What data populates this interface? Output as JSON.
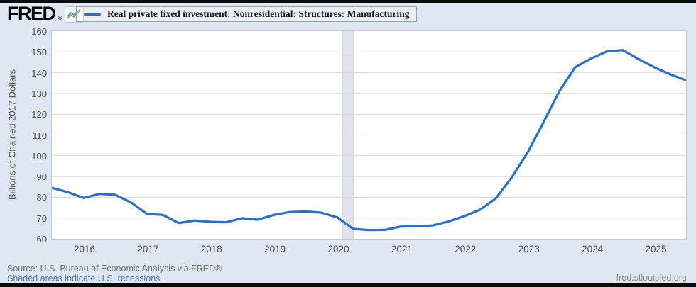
{
  "header": {
    "logo_text": "FRED",
    "registered_mark": "®",
    "legend_label": "Real private fixed investment: Nonresidential: Structures: Manufacturing"
  },
  "y_axis": {
    "title": "Billions of Chained 2017 Dollars",
    "ticks": [
      160,
      150,
      140,
      130,
      120,
      110,
      100,
      90,
      80,
      70,
      60
    ]
  },
  "x_axis": {
    "ticks": [
      "2016",
      "2017",
      "2018",
      "2019",
      "2020",
      "2021",
      "2022",
      "2023",
      "2024",
      "2025"
    ]
  },
  "footer": {
    "source": "Source: U.S. Bureau of Economic Analysis via FRED®",
    "recession_note": "Shaded areas indicate U.S. recessions.",
    "site": "fred.stlouisfed.org"
  },
  "colors": {
    "line": "#2470d4",
    "page_background": "#dfe8f2",
    "plot_background": "#ffffff",
    "gridline": "#d7d7d7",
    "recession_band": "#e0e4ea",
    "recession_band_edge": "#c8ced6",
    "tick_text": "#4d4d4d",
    "link_blue": "#4a77b4"
  },
  "chart_data": {
    "type": "line",
    "title": "Real private fixed investment: Nonresidential: Structures: Manufacturing",
    "ylabel": "Billions of Chained 2017 Dollars",
    "ylim": [
      60,
      160
    ],
    "y_tick_step": 10,
    "grid": "horizontal",
    "legend_position": "top-left",
    "frequency": "quarterly",
    "x_start": "2015-Q2",
    "x_end": "2025-Q2",
    "values": [
      84.5,
      82.5,
      79.7,
      81.6,
      81.2,
      77.5,
      72.0,
      71.5,
      67.6,
      68.8,
      68.2,
      68.0,
      69.9,
      69.2,
      71.5,
      72.9,
      73.2,
      72.6,
      70.3,
      64.8,
      64.2,
      64.3,
      65.9,
      66.1,
      66.4,
      68.3,
      70.9,
      74.0,
      79.5,
      89.5,
      101.5,
      116.0,
      131.0,
      142.6,
      146.8,
      150.2,
      150.9,
      146.6,
      142.6,
      139.2,
      136.3
    ],
    "recession_shading": {
      "x_frac_start": 0.458,
      "x_frac_end": 0.475
    },
    "x_label_layout": {
      "first_frac": 0.0515,
      "step_frac": 0.1001
    }
  }
}
